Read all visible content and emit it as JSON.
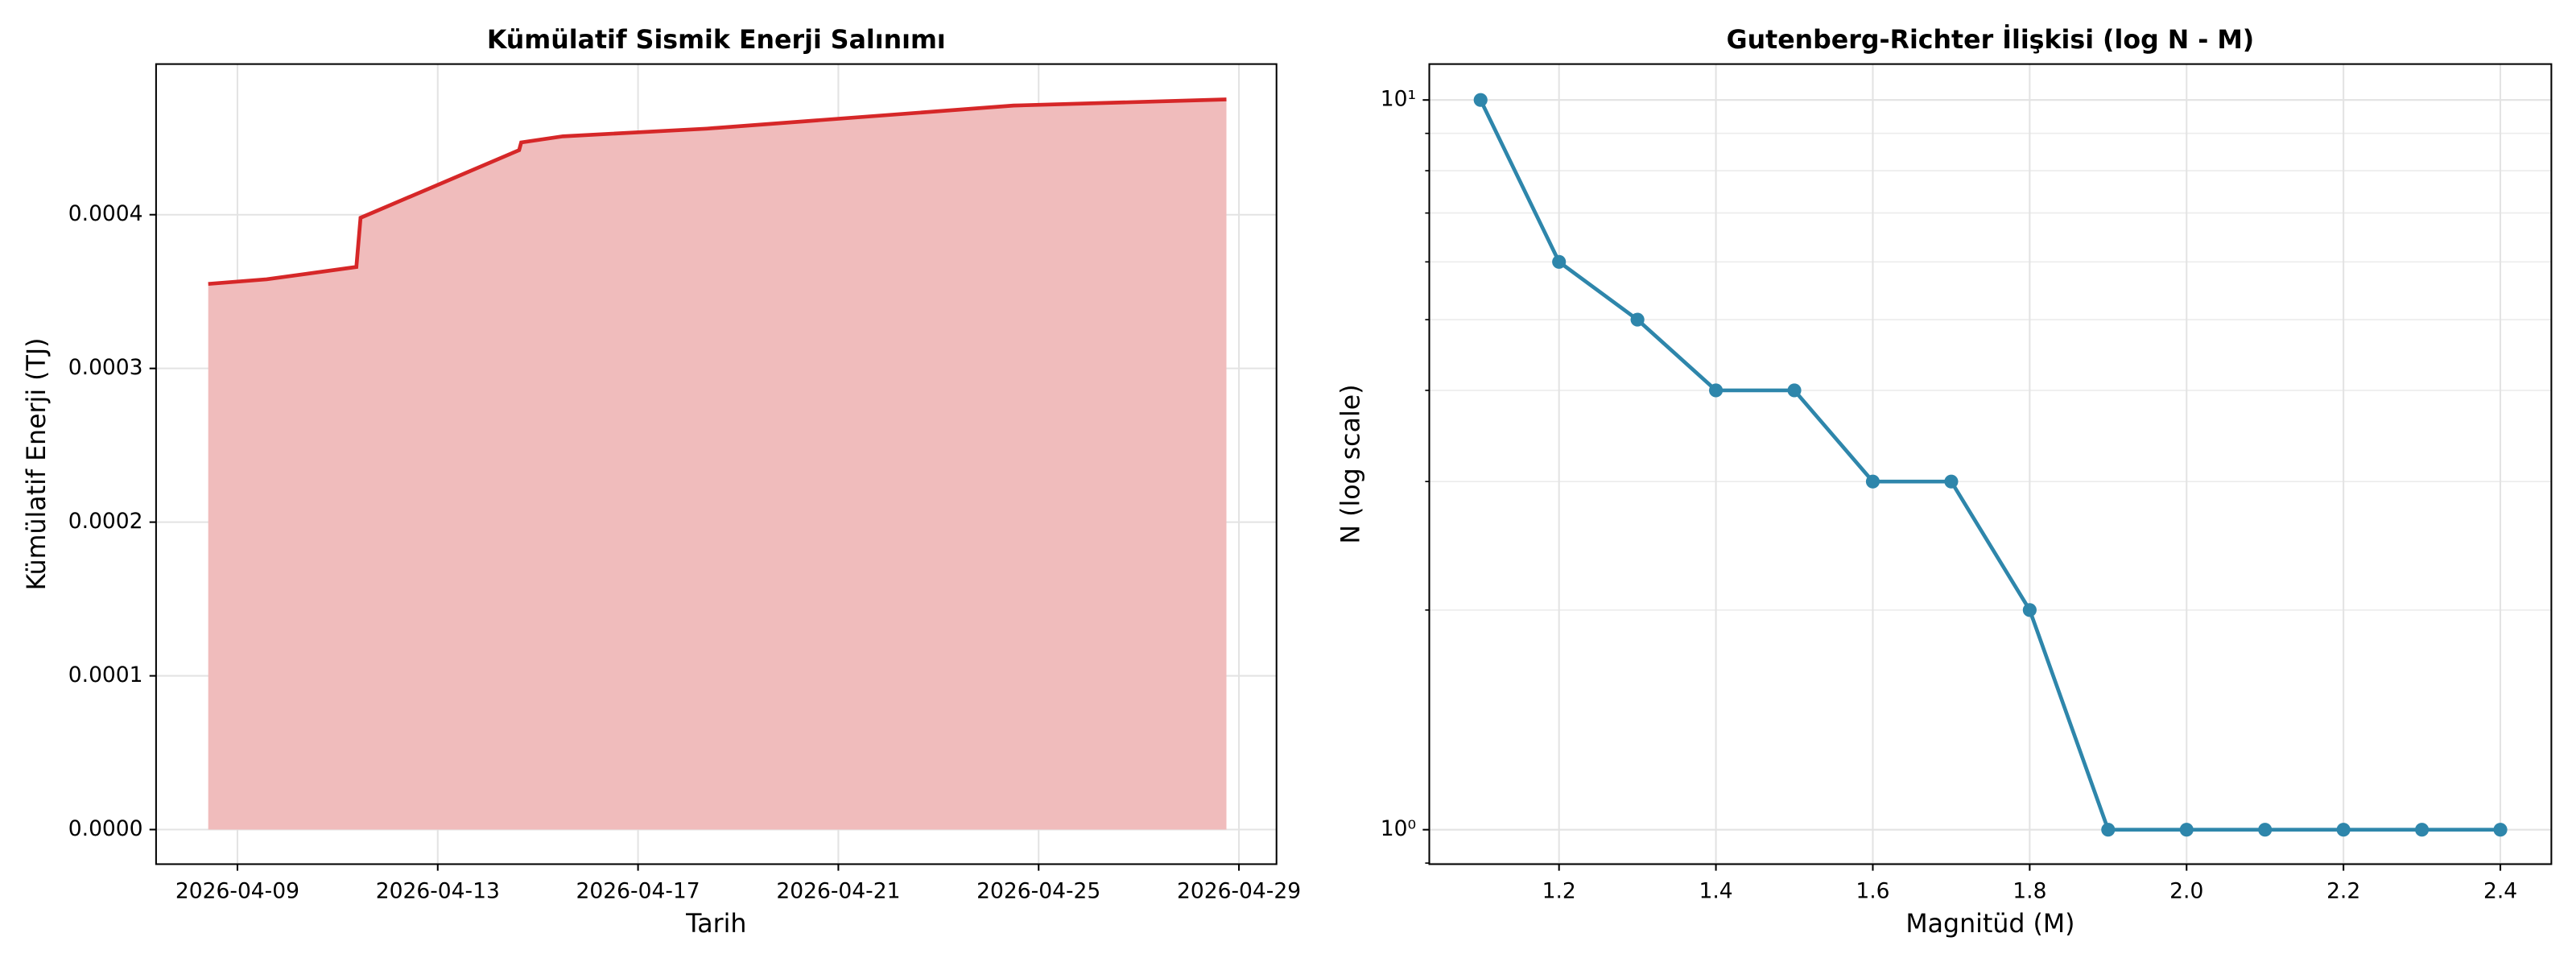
{
  "chart_data": [
    {
      "type": "area",
      "title": "Kümülatif Sismik Enerji Salınımı",
      "x_label": "Tarih",
      "y_label": "Kümülatif Enerji (TJ)",
      "x": [
        "2026-04-08T10:00",
        "2026-04-09T14:00",
        "2026-04-11T09:00",
        "2026-04-11T11:00",
        "2026-04-14T15:00",
        "2026-04-14T16:00",
        "2026-04-15T12:00",
        "2026-04-18T09:00",
        "2026-04-24T12:00",
        "2026-04-28T18:00"
      ],
      "values": [
        0.000355,
        0.000358,
        0.000366,
        0.000398,
        0.000442,
        0.000447,
        0.000451,
        0.000456,
        0.000471,
        0.000475
      ],
      "color": "#d62728",
      "fill_color": "#f0bcbc",
      "xlim": [
        "2026-04-07T09:00",
        "2026-04-29T18:00"
      ],
      "xticks": [
        "2026-04-09",
        "2026-04-13",
        "2026-04-17",
        "2026-04-21",
        "2026-04-25",
        "2026-04-29"
      ],
      "ylim": [
        -2.25e-05,
        0.000498
      ],
      "yticks": [
        {
          "value": 0,
          "label": "0.0000"
        },
        {
          "value": 0.0001,
          "label": "0.0001"
        },
        {
          "value": 0.0002,
          "label": "0.0002"
        },
        {
          "value": 0.0003,
          "label": "0.0003"
        },
        {
          "value": 0.0004,
          "label": "0.0004"
        }
      ],
      "grid": true
    },
    {
      "type": "line",
      "title": "Gutenberg-Richter İlişkisi (log N - M)",
      "x_label": "Magnitüd (M)",
      "y_label": "N (log scale)",
      "x": [
        1.1,
        1.2,
        1.3,
        1.4,
        1.5,
        1.6,
        1.7,
        1.8,
        1.9,
        2.0,
        2.1,
        2.2,
        2.3,
        2.4
      ],
      "values": [
        10,
        6,
        5,
        4,
        4,
        3,
        3,
        2,
        1,
        1,
        1,
        1,
        1,
        1
      ],
      "color": "#2e86ab",
      "log_y": true,
      "xlim": [
        1.0346,
        2.465
      ],
      "xticks": [
        {
          "value": 1.2,
          "label": "1.2"
        },
        {
          "value": 1.4,
          "label": "1.4"
        },
        {
          "value": 1.6,
          "label": "1.6"
        },
        {
          "value": 1.8,
          "label": "1.8"
        },
        {
          "value": 2.0,
          "label": "2.0"
        },
        {
          "value": 2.2,
          "label": "2.2"
        },
        {
          "value": 2.4,
          "label": "2.4"
        }
      ],
      "ylim": [
        0.897,
        11.2
      ],
      "yticks": [
        {
          "value": 1,
          "label": "10⁰"
        },
        {
          "value": 10,
          "label": "10¹"
        }
      ],
      "grid": true
    }
  ]
}
